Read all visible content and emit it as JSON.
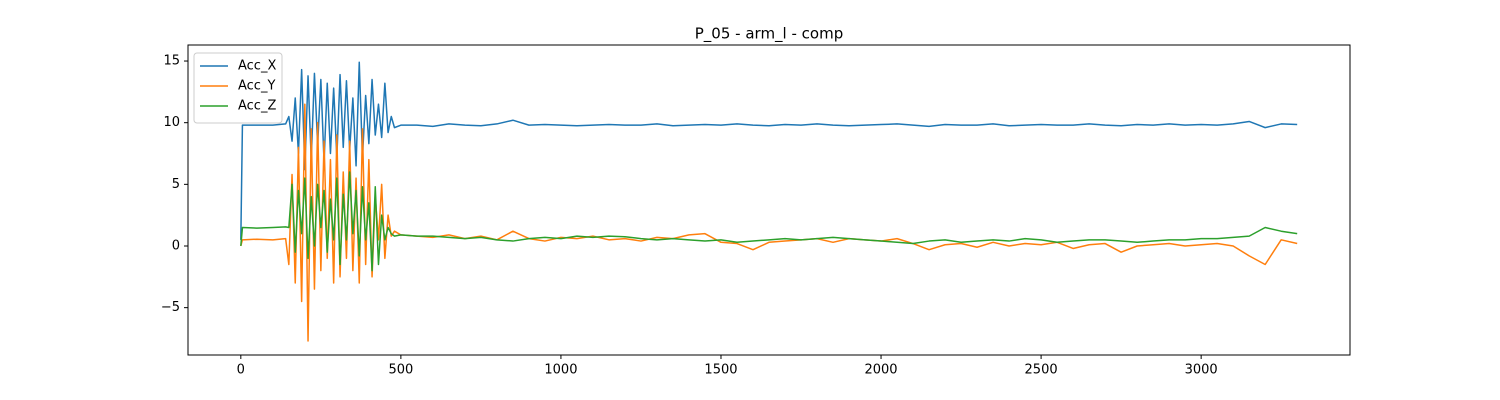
{
  "chart_data": {
    "type": "line",
    "title": "P_05 - arm_l - comp",
    "x": [
      0,
      5,
      50,
      100,
      140,
      150,
      160,
      170,
      180,
      190,
      200,
      210,
      220,
      230,
      240,
      250,
      260,
      270,
      280,
      290,
      300,
      310,
      320,
      330,
      340,
      350,
      360,
      370,
      380,
      390,
      400,
      410,
      420,
      430,
      440,
      450,
      460,
      470,
      480,
      500,
      550,
      600,
      650,
      700,
      750,
      800,
      850,
      900,
      950,
      1000,
      1050,
      1100,
      1150,
      1200,
      1250,
      1300,
      1350,
      1400,
      1450,
      1500,
      1550,
      1600,
      1650,
      1700,
      1750,
      1800,
      1850,
      1900,
      1950,
      2000,
      2050,
      2100,
      2150,
      2200,
      2250,
      2300,
      2350,
      2400,
      2450,
      2500,
      2550,
      2600,
      2650,
      2700,
      2750,
      2800,
      2850,
      2900,
      2950,
      3000,
      3050,
      3100,
      3150,
      3200,
      3250,
      3300
    ],
    "series": [
      {
        "name": "Acc_X",
        "color": "#1f77b4",
        "values": [
          0.5,
          9.8,
          9.8,
          9.8,
          9.9,
          10.5,
          8.5,
          12,
          7.5,
          14.3,
          6.2,
          13.8,
          7,
          14,
          8.2,
          13.5,
          6.8,
          13.2,
          7.5,
          12.8,
          7.2,
          13.9,
          8,
          13.4,
          7.8,
          12,
          6.5,
          14.9,
          7.2,
          12.2,
          8.3,
          13.5,
          9,
          11.5,
          8.8,
          13.2,
          9.2,
          10.5,
          9.6,
          9.8,
          9.8,
          9.7,
          9.9,
          9.8,
          9.75,
          9.9,
          10.2,
          9.8,
          9.85,
          9.8,
          9.75,
          9.8,
          9.85,
          9.8,
          9.8,
          9.9,
          9.75,
          9.8,
          9.85,
          9.8,
          9.9,
          9.8,
          9.75,
          9.85,
          9.8,
          9.9,
          9.8,
          9.75,
          9.8,
          9.85,
          9.9,
          9.8,
          9.7,
          9.85,
          9.8,
          9.8,
          9.9,
          9.75,
          9.8,
          9.85,
          9.8,
          9.8,
          9.9,
          9.8,
          9.75,
          9.85,
          9.8,
          9.9,
          9.8,
          9.85,
          9.8,
          9.9,
          10.1,
          9.6,
          9.9,
          9.85
        ]
      },
      {
        "name": "Acc_Y",
        "color": "#ff7f0e",
        "values": [
          0,
          0.5,
          0.55,
          0.5,
          0.6,
          -1.5,
          5.8,
          -3,
          8,
          -4.5,
          11.5,
          -7.7,
          9.5,
          -3.5,
          10,
          -2,
          8.5,
          -1,
          7,
          -3,
          9,
          -2.5,
          6,
          -1,
          8.5,
          -2,
          5.5,
          -3,
          9.5,
          -1.5,
          7,
          -2.5,
          4,
          0.5,
          5,
          -1,
          2.5,
          0.8,
          1.2,
          0.9,
          0.8,
          0.7,
          0.9,
          0.6,
          0.8,
          0.5,
          1.2,
          0.6,
          0.4,
          0.7,
          0.6,
          0.8,
          0.5,
          0.6,
          0.4,
          0.7,
          0.6,
          0.9,
          1.0,
          0.3,
          0.2,
          -0.3,
          0.3,
          0.4,
          0.5,
          0.6,
          0.3,
          0.6,
          0.5,
          0.4,
          0.6,
          0.2,
          -0.3,
          0.1,
          0.2,
          -0.1,
          0.3,
          0.0,
          0.2,
          0.1,
          0.3,
          -0.2,
          0.1,
          0.2,
          -0.5,
          0.0,
          0.1,
          0.2,
          0.0,
          0.1,
          0.2,
          0.0,
          -0.8,
          -1.5,
          0.5,
          0.2
        ]
      },
      {
        "name": "Acc_Z",
        "color": "#2ca02c",
        "values": [
          0,
          1.5,
          1.45,
          1.5,
          1.55,
          1.5,
          5,
          -0.5,
          4.5,
          1,
          5.5,
          -1,
          4,
          0,
          5,
          1.5,
          4.5,
          -0.5,
          3.8,
          0.5,
          5.5,
          -1.5,
          4.2,
          0.5,
          6,
          1,
          4.5,
          -0.8,
          4.8,
          0.5,
          3.5,
          -2,
          4.8,
          -1.5,
          2.5,
          0.5,
          1.5,
          1,
          0.8,
          0.9,
          0.8,
          0.8,
          0.7,
          0.6,
          0.7,
          0.5,
          0.4,
          0.6,
          0.7,
          0.6,
          0.8,
          0.7,
          0.8,
          0.75,
          0.6,
          0.5,
          0.6,
          0.5,
          0.4,
          0.5,
          0.3,
          0.4,
          0.5,
          0.6,
          0.5,
          0.6,
          0.7,
          0.6,
          0.5,
          0.4,
          0.3,
          0.2,
          0.4,
          0.5,
          0.3,
          0.4,
          0.5,
          0.4,
          0.6,
          0.5,
          0.3,
          0.4,
          0.5,
          0.5,
          0.4,
          0.3,
          0.4,
          0.5,
          0.5,
          0.6,
          0.6,
          0.7,
          0.8,
          1.5,
          1.2,
          1.0
        ]
      }
    ],
    "xlim": [
      -165,
      3465
    ],
    "xticks": [
      0,
      500,
      1000,
      1500,
      2000,
      2500,
      3000
    ],
    "ylim": [
      -8.84,
      16.3
    ],
    "yticks": [
      {
        "value": -5,
        "label": "−5"
      },
      0,
      5,
      10,
      15
    ],
    "legend": "upper left"
  }
}
